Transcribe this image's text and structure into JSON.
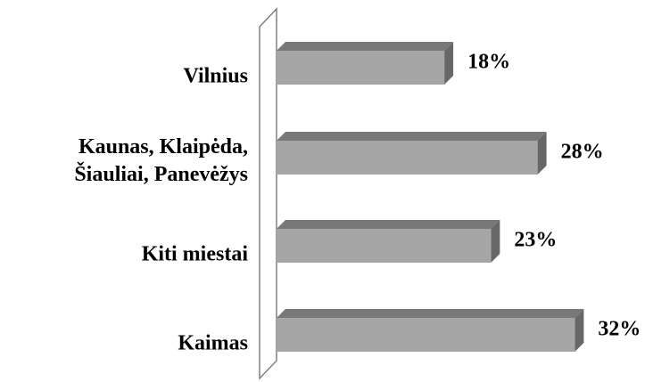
{
  "chart_data": {
    "type": "bar3d-horizontal",
    "categories": [
      "Vilnius",
      "Kaunas, Klaipėda, Šiauliai, Panevėžys",
      "Kiti miestai",
      "Kaimas"
    ],
    "values": [
      18,
      28,
      23,
      32
    ],
    "value_labels": [
      "18%",
      "28%",
      "23%",
      "32%"
    ],
    "color": "#a6a6a6"
  }
}
